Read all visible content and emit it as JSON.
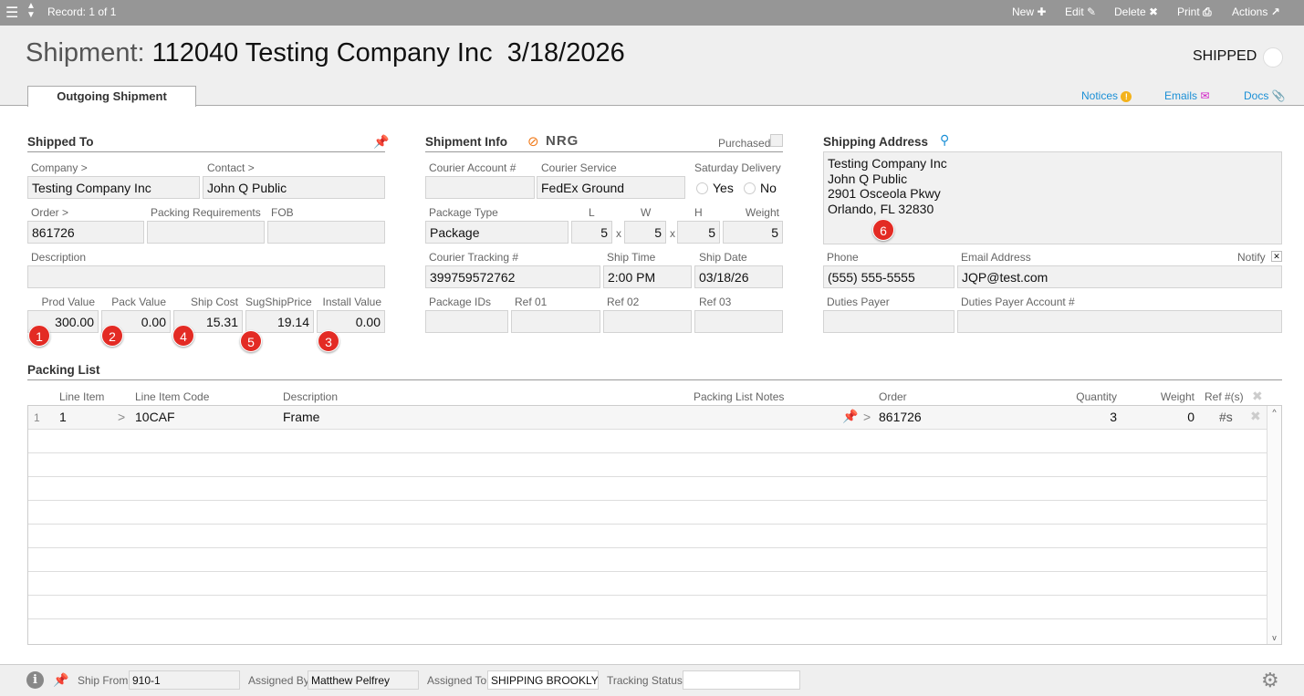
{
  "topbar": {
    "record": "Record: 1 of 1",
    "new": "New",
    "edit": "Edit",
    "delete": "Delete",
    "print": "Print",
    "actions": "Actions"
  },
  "header": {
    "title_label": "Shipment:",
    "title_value": "112040 Testing Company Inc  3/18/2026",
    "status": "SHIPPED",
    "tab": "Outgoing Shipment",
    "notices": "Notices",
    "emails": "Emails",
    "docs": "Docs"
  },
  "shipped_to": {
    "title": "Shipped To",
    "company_label": "Company >",
    "company": "Testing Company Inc",
    "contact_label": "Contact >",
    "contact": "John Q Public",
    "order_label": "Order >",
    "order": "861726",
    "packing_req_label": "Packing Requirements",
    "packing_req": "",
    "fob_label": "FOB",
    "fob": "",
    "description_label": "Description",
    "description": "",
    "prod_value_label": "Prod Value",
    "prod_value": "300.00",
    "pack_value_label": "Pack Value",
    "pack_value": "0.00",
    "ship_cost_label": "Ship Cost",
    "ship_cost": "15.31",
    "sug_ship_price_label": "SugShipPrice",
    "sug_ship_price": "19.14",
    "install_value_label": "Install Value",
    "install_value": "0.00"
  },
  "badges": [
    "1",
    "2",
    "4",
    "5",
    "3",
    "6"
  ],
  "shipment_info": {
    "title": "Shipment Info",
    "logo": "NRG",
    "purchased_label": "Purchased",
    "courier_account_label": "Courier Account #",
    "courier_account": "",
    "courier_service_label": "Courier Service",
    "courier_service": "FedEx Ground",
    "saturday_label": "Saturday Delivery",
    "yes": "Yes",
    "no": "No",
    "package_type_label": "Package Type",
    "package_type": "Package",
    "l_label": "L",
    "l": "5",
    "w_label": "W",
    "w": "5",
    "h_label": "H",
    "h": "5",
    "x": "x",
    "weight_label": "Weight",
    "weight": "5",
    "tracking_label": "Courier Tracking #",
    "tracking": "399759572762",
    "ship_time_label": "Ship Time",
    "ship_time": "2:00 PM",
    "ship_date_label": "Ship Date",
    "ship_date": "03/18/26",
    "package_ids_label": "Package IDs",
    "ref01_label": "Ref 01",
    "ref02_label": "Ref 02",
    "ref03_label": "Ref 03"
  },
  "shipping_address": {
    "title": "Shipping Address",
    "lines": [
      "Testing Company Inc",
      "John Q Public",
      "2901 Osceola Pkwy",
      "Orlando, FL 32830"
    ],
    "phone_label": "Phone",
    "phone": "(555) 555-5555",
    "email_label": "Email Address",
    "email": "JQP@test.com",
    "notify_label": "Notify",
    "duties_payer_label": "Duties Payer",
    "duties_account_label": "Duties Payer Account #"
  },
  "packing_list": {
    "title": "Packing List",
    "columns": {
      "line_item": "Line Item",
      "code": "Line Item Code",
      "description": "Description",
      "notes": "Packing List Notes",
      "order": "Order",
      "quantity": "Quantity",
      "weight": "Weight",
      "refs": "Ref #(s)"
    },
    "rows": [
      {
        "num": "1",
        "line_item": "1",
        "code": "10CAF",
        "description": "Frame",
        "notes": "",
        "order": "861726",
        "quantity": "3",
        "weight": "0",
        "refs": "#s"
      }
    ]
  },
  "footer": {
    "ship_from_label": "Ship From",
    "ship_from": "910-1",
    "assigned_by_label": "Assigned By",
    "assigned_by": "Matthew Pelfrey",
    "assigned_to_label": "Assigned To",
    "assigned_to": "SHIPPING BROOKLYN",
    "tracking_status_label": "Tracking Status",
    "tracking_status": ""
  },
  "colors": {
    "topbar": "#969696",
    "badge": "#e32b24",
    "link": "#1a8fd6",
    "nrg": "#f07a1a"
  }
}
